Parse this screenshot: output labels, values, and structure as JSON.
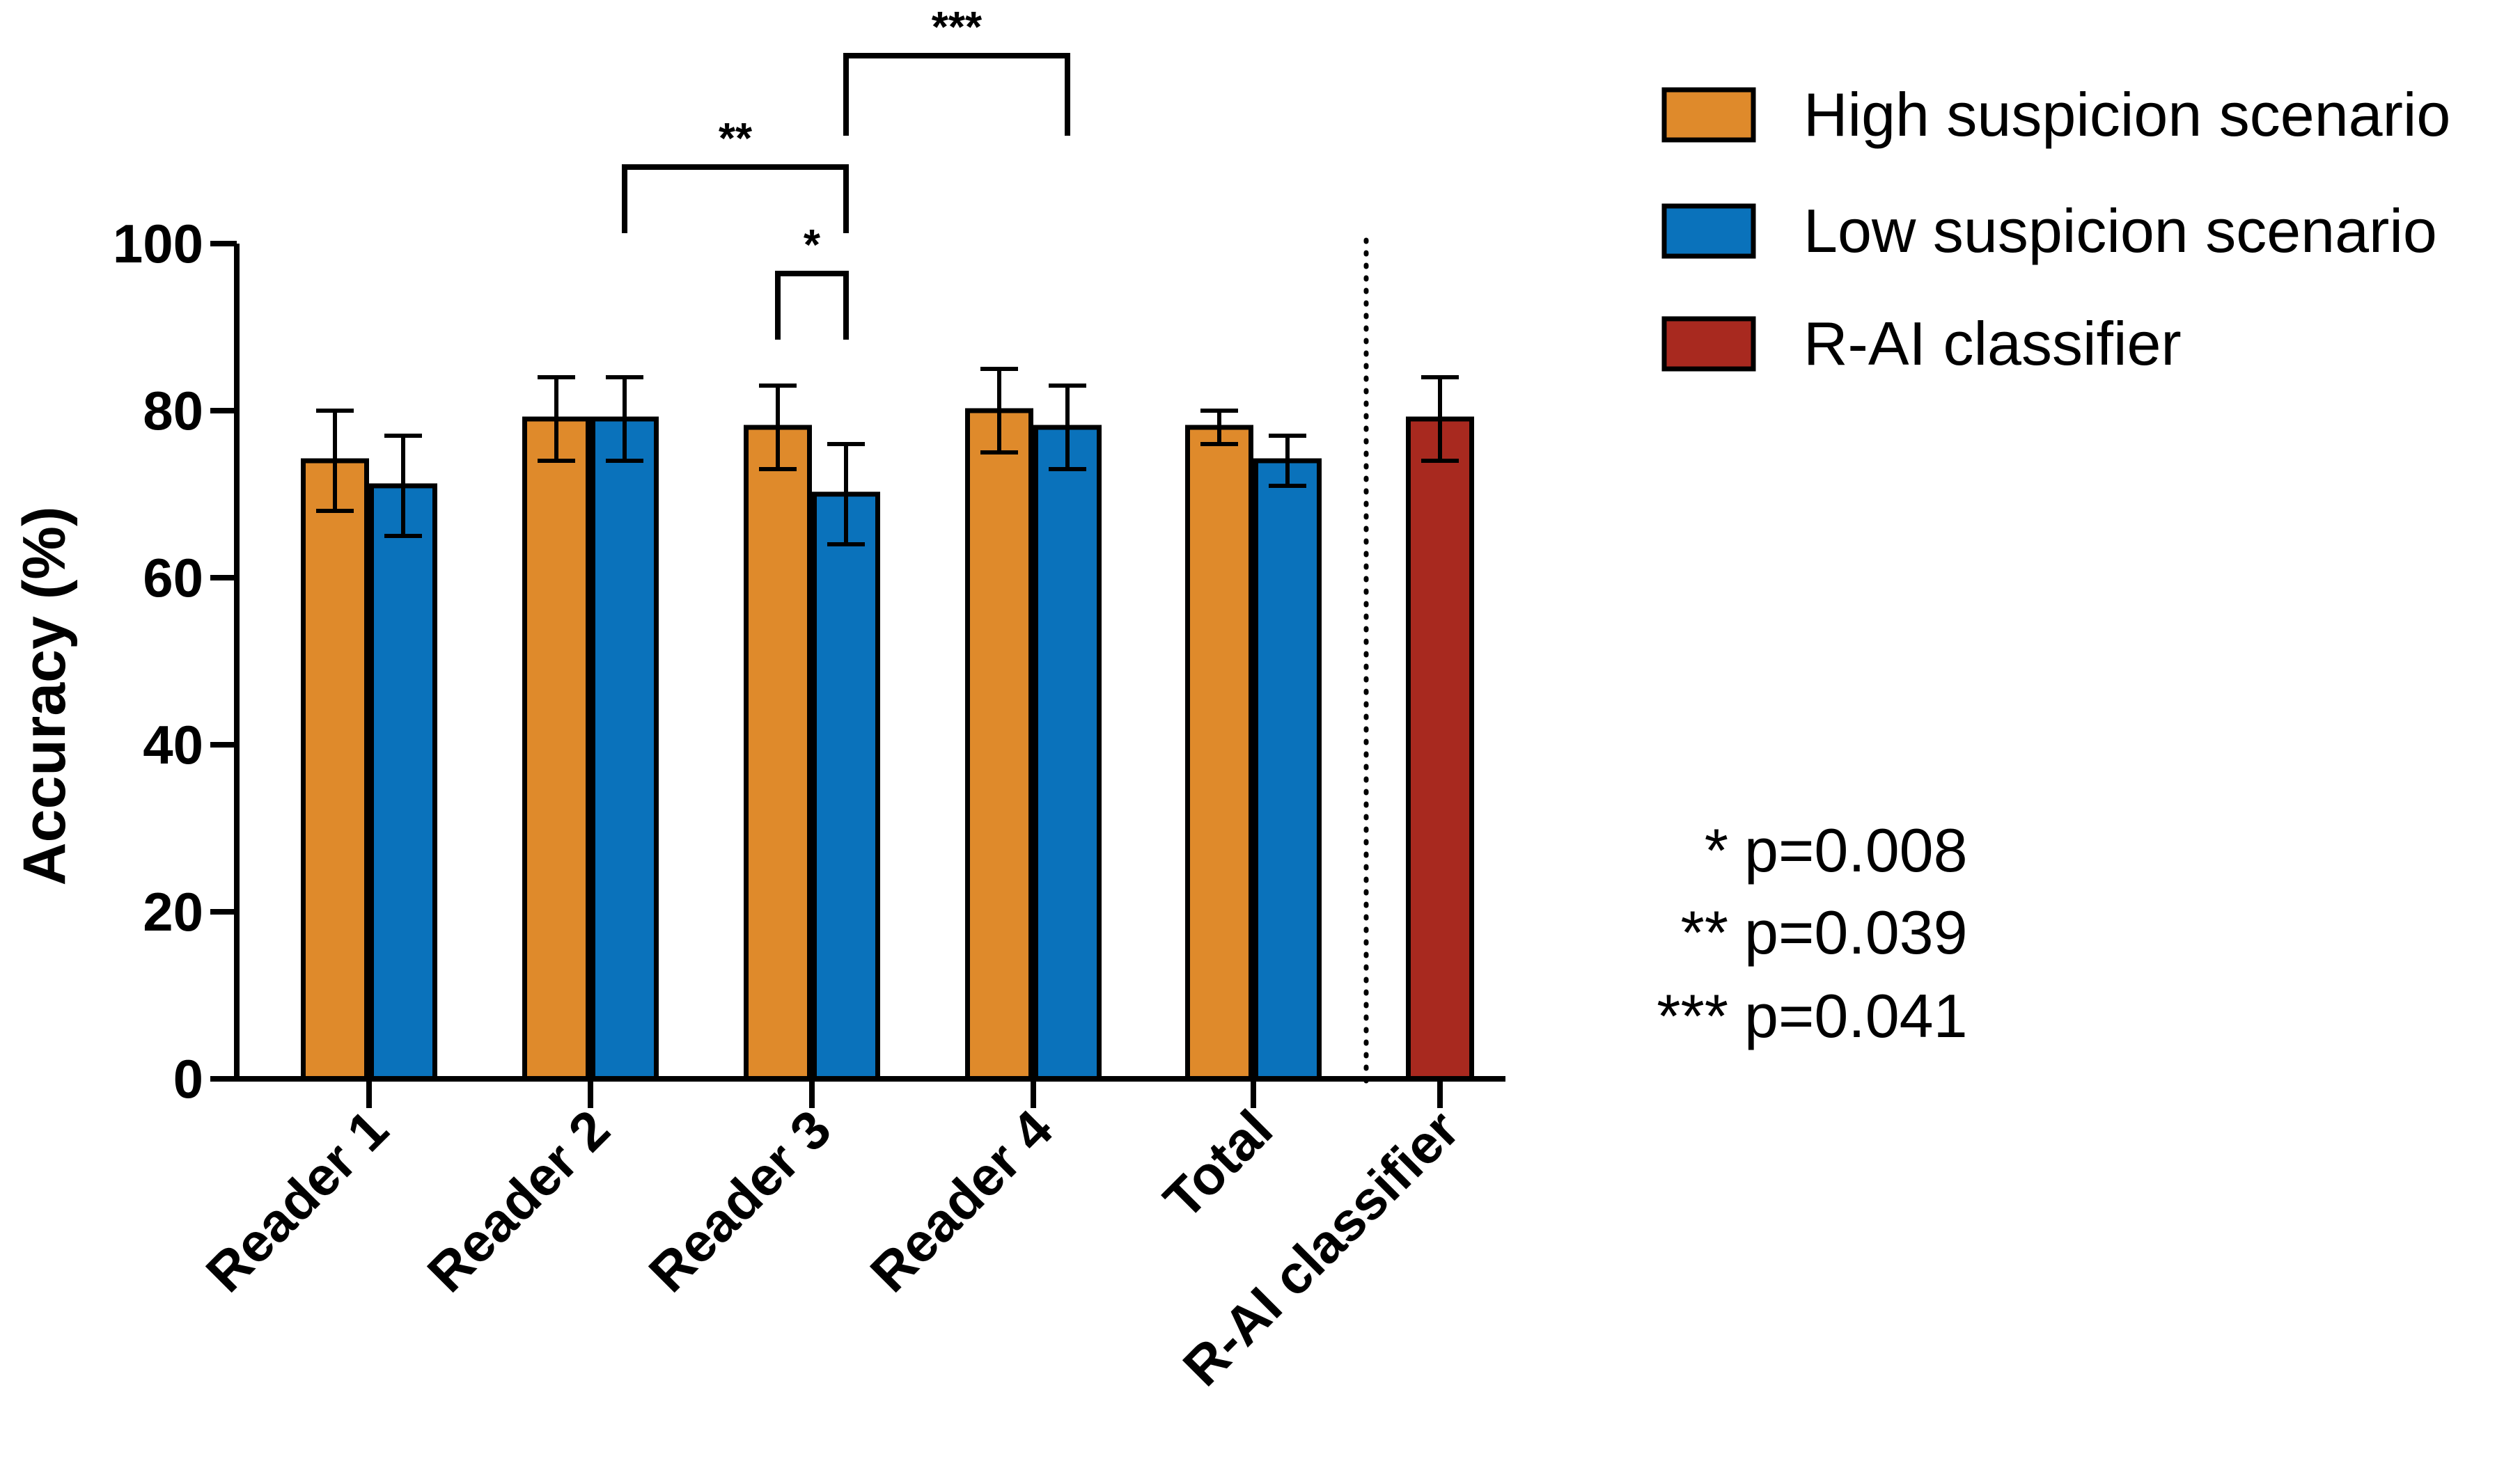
{
  "chart_data": {
    "type": "bar",
    "title": "",
    "xlabel": "",
    "ylabel": "Accuracy (%)",
    "ylim": [
      0,
      100
    ],
    "yticks": [
      "0",
      "20",
      "40",
      "60",
      "80",
      "100"
    ],
    "categories": [
      "Reader 1",
      "Reader 2",
      "Reader 3",
      "Reader 4",
      "Total",
      "R-AI classifier"
    ],
    "series": [
      {
        "name": "High suspicion scenario",
        "color": "#df8a2b",
        "values": [
          74,
          79,
          78,
          80,
          78,
          null
        ],
        "error": [
          6,
          5,
          5,
          5,
          2,
          null
        ]
      },
      {
        "name": "Low suspicion scenario",
        "color": "#0a72bb",
        "values": [
          71,
          79,
          70,
          78,
          74,
          null
        ],
        "error": [
          6,
          5,
          6,
          5,
          3,
          null
        ]
      },
      {
        "name": "R-AI classifier",
        "color": "#a8291f",
        "values": [
          null,
          null,
          null,
          null,
          null,
          79
        ],
        "error": [
          null,
          null,
          null,
          null,
          null,
          5
        ]
      }
    ],
    "significance": [
      {
        "label": "*",
        "from": {
          "category": 2,
          "series": 0
        },
        "to": {
          "category": 2,
          "series": 1
        }
      },
      {
        "label": "**",
        "from": {
          "category": 1,
          "series": 1
        },
        "to": {
          "category": 2,
          "series": 1
        }
      },
      {
        "label": "***",
        "from": {
          "category": 2,
          "series": 1
        },
        "to": {
          "category": 3,
          "series": 1
        }
      }
    ],
    "pvalues": [
      {
        "stars": "*",
        "text": "p=0.008"
      },
      {
        "stars": "**",
        "text": "p=0.039"
      },
      {
        "stars": "***",
        "text": "p=0.041"
      }
    ],
    "legend_position": "top-right",
    "separator": "dotted line before R-AI classifier"
  }
}
